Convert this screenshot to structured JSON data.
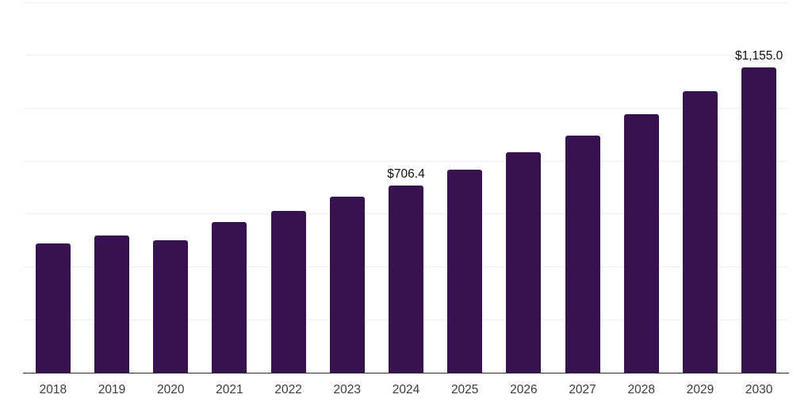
{
  "chart_data": {
    "type": "bar",
    "title": "",
    "xlabel": "",
    "ylabel": "",
    "categories": [
      "2018",
      "2019",
      "2020",
      "2021",
      "2022",
      "2023",
      "2024",
      "2025",
      "2026",
      "2027",
      "2028",
      "2029",
      "2030"
    ],
    "values": [
      488,
      520,
      502,
      570,
      613,
      665,
      706.4,
      768,
      834,
      897,
      977,
      1064,
      1155
    ],
    "data_labels": [
      {
        "category": "2024",
        "label": "$706.4"
      },
      {
        "category": "2030",
        "label": "$1,155.0"
      }
    ],
    "ylim": [
      0,
      1400
    ],
    "gridline_step": 200,
    "grid": true,
    "legend": "none",
    "colors": {
      "bar": "#36134e",
      "gridline": "#efefef",
      "axis": "#2b2b2b",
      "tick_label": "#3c3c3c",
      "data_label": "#111111",
      "background": "#ffffff"
    }
  }
}
